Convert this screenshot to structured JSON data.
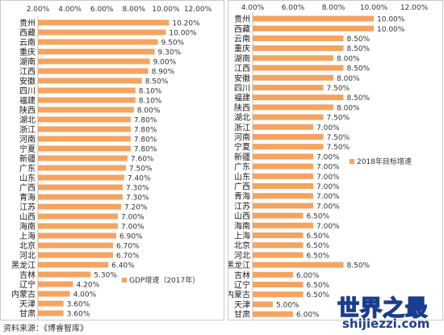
{
  "chart_data": [
    {
      "type": "bar",
      "orientation": "horizontal",
      "categories": [
        "贵州",
        "西藏",
        "云南",
        "重庆",
        "湖南",
        "江西",
        "安徽",
        "四川",
        "福建",
        "陕西",
        "湖北",
        "浙江",
        "河南",
        "宁夏",
        "新疆",
        "广东",
        "山东",
        "广西",
        "青海",
        "江苏",
        "山西",
        "海南",
        "上海",
        "北京",
        "河北",
        "黑龙江",
        "吉林",
        "辽宁",
        "内蒙古",
        "天津",
        "甘肃"
      ],
      "series": [
        {
          "name": "GDP增速（2017年）",
          "values": [
            10.2,
            10.0,
            9.5,
            9.3,
            9.0,
            8.9,
            8.5,
            8.1,
            8.1,
            8.0,
            7.8,
            7.8,
            7.8,
            7.8,
            7.6,
            7.5,
            7.4,
            7.3,
            7.3,
            7.2,
            7.0,
            7.0,
            6.9,
            6.7,
            6.7,
            6.4,
            5.3,
            4.2,
            4.0,
            3.6,
            3.6
          ],
          "labels": [
            "10.20%",
            "10.00%",
            "9.50%",
            "9.30%",
            "9.00%",
            "8.90%",
            "8.50%",
            "8.10%",
            "8.10%",
            "8.00%",
            "7.80%",
            "7.80%",
            "7.80%",
            "7.80%",
            "7.60%",
            "7.50%",
            "7.40%",
            "7.30%",
            "7.30%",
            "7.20%",
            "7.00%",
            "7.00%",
            "6.90%",
            "6.70%",
            "6.70%",
            "6.40%",
            "5.30%",
            "4.20%",
            "4.00%",
            "3.60%",
            "3.60%"
          ]
        }
      ],
      "xlim": [
        2,
        12
      ],
      "xticks": [
        "2.00%",
        "4.00%",
        "6.00%",
        "8.00%",
        "10.00%",
        "12.00%"
      ],
      "xaxis_position": "top",
      "legend": "bottom-right",
      "grid": false,
      "color": "#f4a460"
    },
    {
      "type": "bar",
      "orientation": "horizontal",
      "categories": [
        "贵州",
        "西藏",
        "云南",
        "重庆",
        "湖南",
        "江西",
        "安徽",
        "四川",
        "福建",
        "陕西",
        "湖北",
        "浙江",
        "河南",
        "宁夏",
        "新疆",
        "广东",
        "山东",
        "广西",
        "青海",
        "江苏",
        "山西",
        "海南",
        "上海",
        "北京",
        "河北",
        "黑龙江",
        "吉林",
        "辽宁",
        "内蒙古",
        "天津",
        "甘肃"
      ],
      "series": [
        {
          "name": "2018年目标增速",
          "values": [
            10.0,
            10.0,
            8.5,
            8.5,
            8.0,
            8.5,
            8.0,
            7.5,
            8.5,
            8.0,
            7.5,
            7.0,
            7.5,
            7.5,
            7.0,
            7.0,
            7.0,
            7.0,
            7.0,
            7.0,
            6.5,
            7.0,
            6.5,
            6.5,
            6.5,
            8.5,
            6.0,
            6.5,
            6.5,
            5.0,
            6.0
          ],
          "labels": [
            "10.00%",
            "10.00%",
            "8.50%",
            "8.50%",
            "8.00%",
            "8.50%",
            "8.00%",
            "7.50%",
            "8.50%",
            "8.00%",
            "7.50%",
            "7.00%",
            "7.50%",
            "7.50%",
            "7.00%",
            "7.00%",
            "7.00%",
            "7.00%",
            "7.00%",
            "7.00%",
            "6.50%",
            "7.00%",
            "6.50%",
            "6.50%",
            "6.50%",
            "8.50%",
            "6.00%",
            "6.50%",
            "6.50%",
            "5.00%",
            "6.00%"
          ]
        }
      ],
      "xlim": [
        4,
        12
      ],
      "xticks": [
        "4.00%",
        "6.00%",
        "8.00%",
        "10.00%",
        "12.00%"
      ],
      "xaxis_position": "top",
      "legend": "right",
      "grid": false,
      "color": "#f4a460"
    }
  ],
  "footnote": "资料来源：《博睿智库》",
  "watermark": {
    "main": "世界之最",
    "sub": "shijiezzi.com"
  }
}
